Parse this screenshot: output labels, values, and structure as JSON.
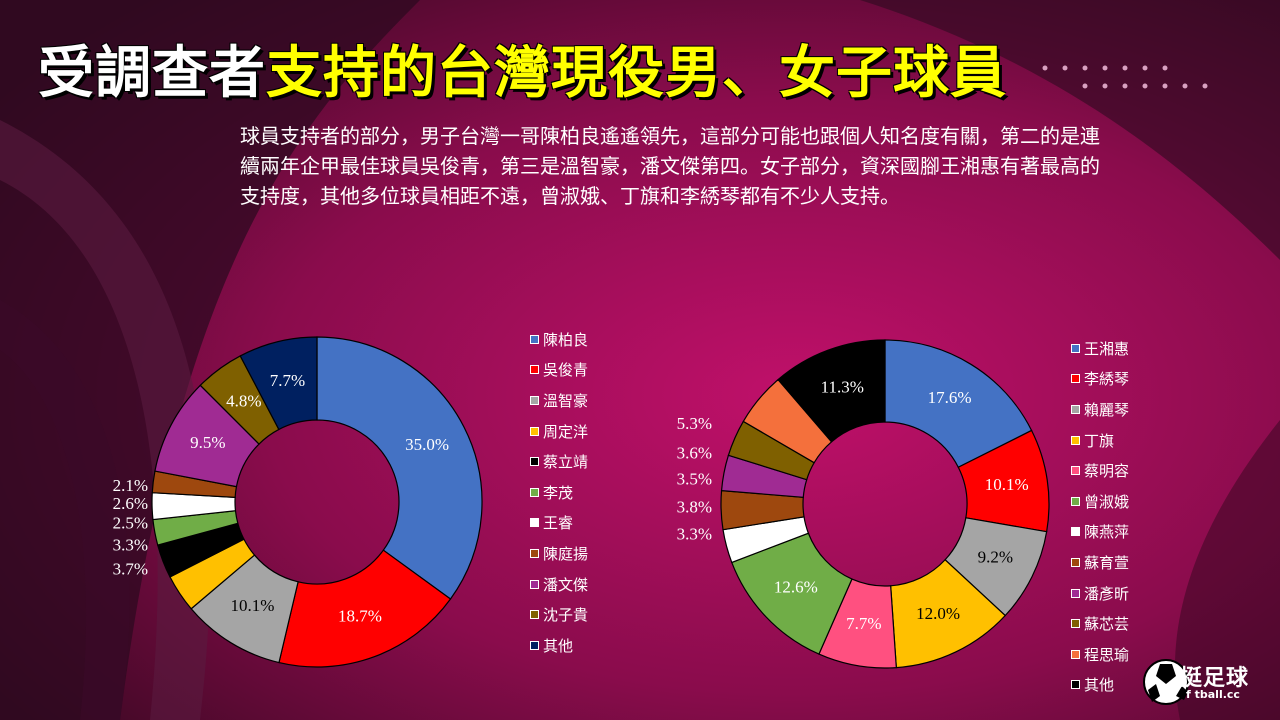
{
  "title": {
    "part1": "受調查者",
    "part2": "支持的台灣現役男、女子球員"
  },
  "description": "球員支持者的部分，男子台灣一哥陳柏良遙遙領先，這部分可能也跟個人知名度有關，第二的是連續兩年企甲最佳球員吳俊青，第三是溫智豪，潘文傑第四。女子部分，資深國腳王湘惠有著最高的支持度，其他多位球員相距不遠，曾淑娥、丁旗和李綉琴都有不少人支持。",
  "logo": {
    "text": "挺足球",
    "sub": "f tball.cc"
  },
  "colors": {
    "background": "#4a0a2e",
    "accent_magenta": "#b0105e",
    "title_yellow": "#ffff00"
  },
  "chart_data": [
    {
      "type": "donut",
      "title": "",
      "series": [
        {
          "name": "陳柏良",
          "value": 35.0,
          "label": "35.0%",
          "color": "#4472c4"
        },
        {
          "name": "吳俊青",
          "value": 18.7,
          "label": "18.7%",
          "color": "#ff0000"
        },
        {
          "name": "溫智豪",
          "value": 10.1,
          "label": "10.1%",
          "color": "#a5a5a5"
        },
        {
          "name": "周定洋",
          "value": 3.7,
          "label": "3.7%",
          "color": "#ffc000"
        },
        {
          "name": "蔡立靖",
          "value": 3.3,
          "label": "3.3%",
          "color": "#000000"
        },
        {
          "name": "李茂",
          "value": 2.5,
          "label": "2.5%",
          "color": "#70ad47"
        },
        {
          "name": "王睿",
          "value": 2.6,
          "label": "2.6%",
          "color": "#ffffff"
        },
        {
          "name": "陳庭揚",
          "value": 2.1,
          "label": "2.1%",
          "color": "#9e480e"
        },
        {
          "name": "潘文傑",
          "value": 9.5,
          "label": "9.5%",
          "color": "#a02b93"
        },
        {
          "name": "沈子貴",
          "value": 4.8,
          "label": "4.8%",
          "color": "#7f6000"
        },
        {
          "name": "其他",
          "value": 7.7,
          "label": "7.7%",
          "color": "#002060"
        }
      ]
    },
    {
      "type": "donut",
      "title": "",
      "series": [
        {
          "name": "王湘惠",
          "value": 17.6,
          "label": "17.6%",
          "color": "#4472c4"
        },
        {
          "name": "李綉琴",
          "value": 10.1,
          "label": "10.1%",
          "color": "#ff0000"
        },
        {
          "name": "賴麗琴",
          "value": 9.2,
          "label": "9.2%",
          "color": "#a5a5a5"
        },
        {
          "name": "丁旗",
          "value": 12.0,
          "label": "12.0%",
          "color": "#ffc000"
        },
        {
          "name": "蔡明容",
          "value": 7.7,
          "label": "7.7%",
          "color": "#ff5080"
        },
        {
          "name": "曾淑娥",
          "value": 12.6,
          "label": "12.6%",
          "color": "#70ad47"
        },
        {
          "name": "陳燕萍",
          "value": 3.3,
          "label": "3.3%",
          "color": "#ffffff"
        },
        {
          "name": "蘇育萱",
          "value": 3.8,
          "label": "3.8%",
          "color": "#9e480e"
        },
        {
          "name": "潘彥昕",
          "value": 3.5,
          "label": "3.5%",
          "color": "#a02b93"
        },
        {
          "name": "蘇芯芸",
          "value": 3.6,
          "label": "3.6%",
          "color": "#7f6000"
        },
        {
          "name": "程思瑜",
          "value": 5.3,
          "label": "5.3%",
          "color": "#f4703c"
        },
        {
          "name": "其他",
          "value": 11.3,
          "label": "11.3%",
          "color": "#000000"
        }
      ]
    }
  ]
}
